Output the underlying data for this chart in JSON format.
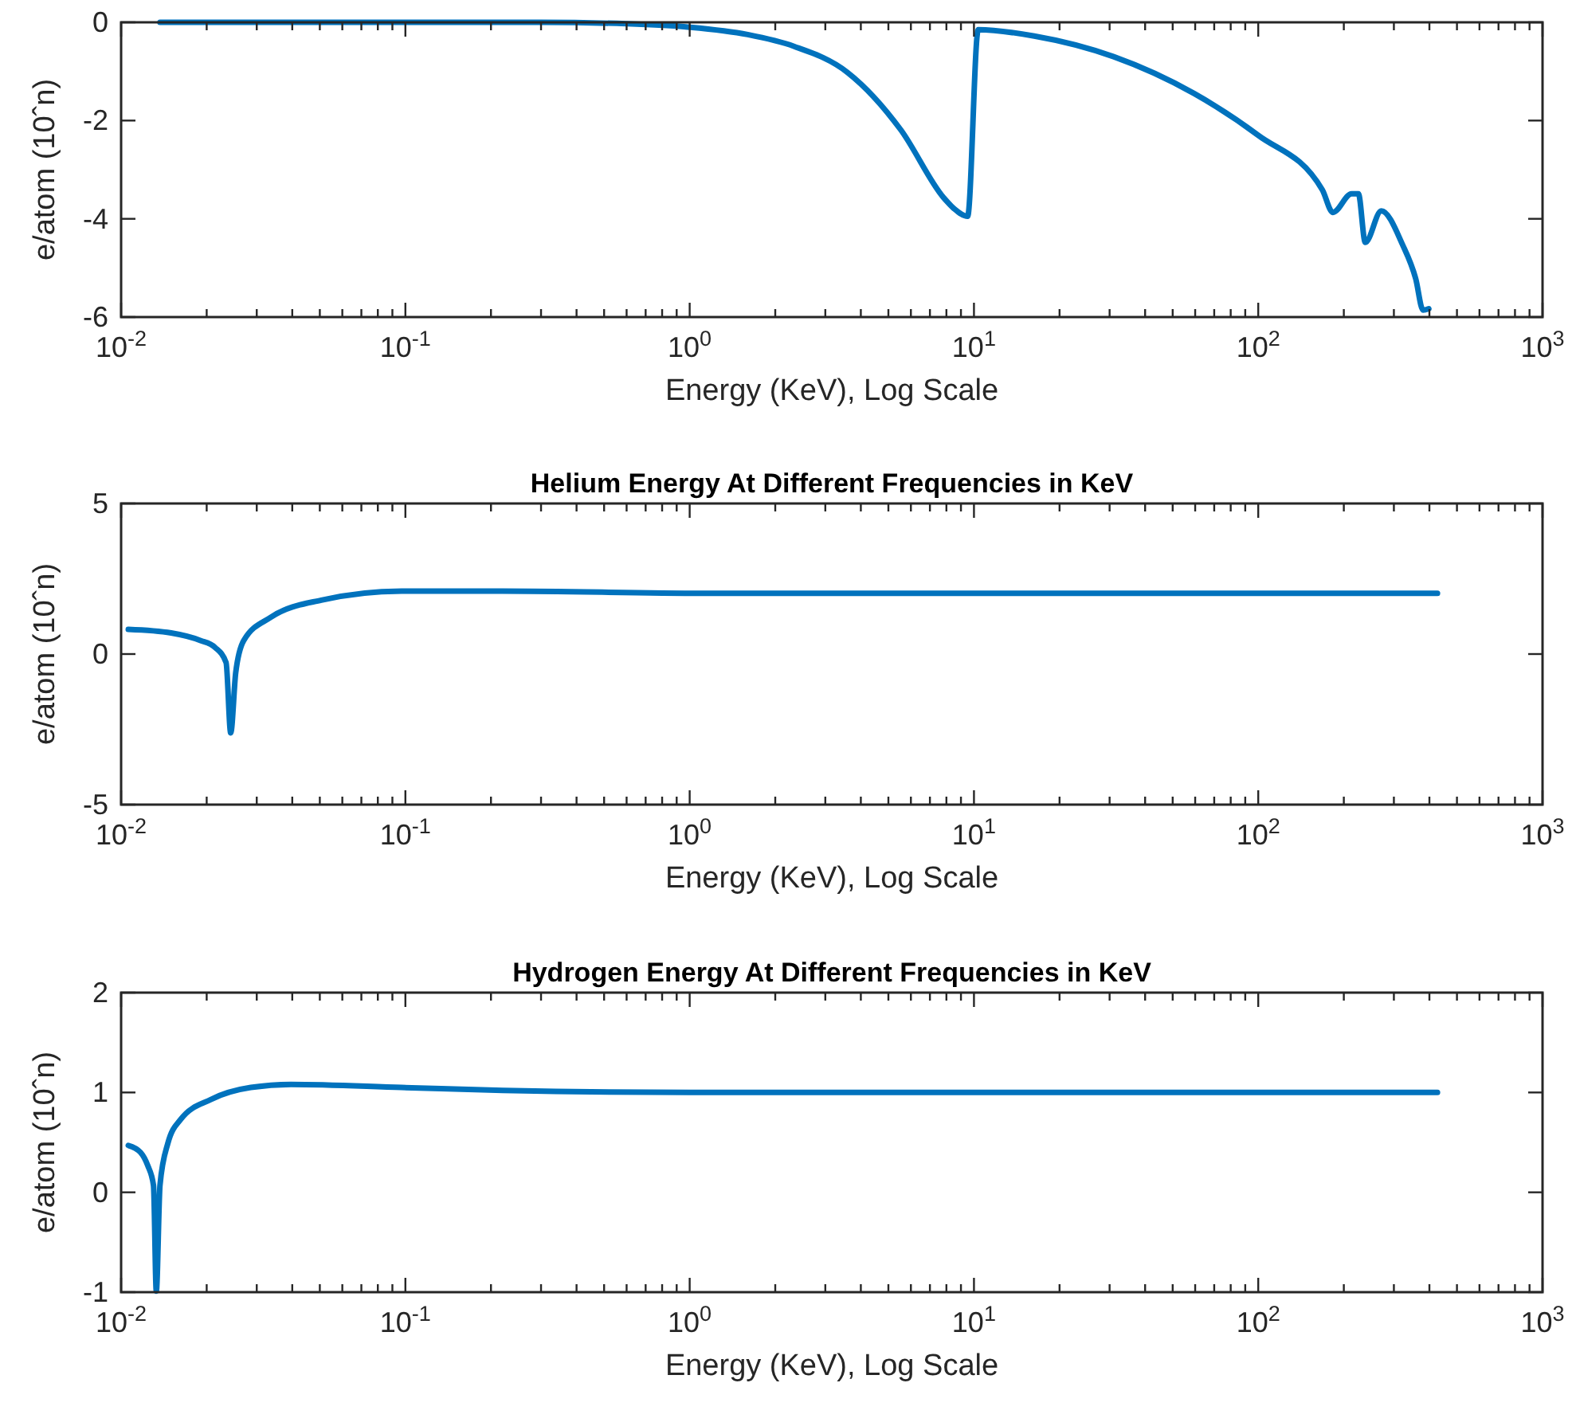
{
  "chart_data": [
    {
      "type": "line",
      "xlabel": "Energy (KeV), Log Scale",
      "ylabel": "e/atom (10ˆn)",
      "log": "x",
      "grid": false,
      "marker": "none",
      "line_style": "solid",
      "xlim": [
        0.01,
        1000
      ],
      "ylim": [
        -6,
        0
      ],
      "yticks": [
        -6,
        -4,
        -2,
        0
      ],
      "xticks": [
        {
          "value": 0.01,
          "label": "10$^{-2}$"
        },
        {
          "value": 0.02,
          "label": null
        },
        {
          "value": 0.03,
          "label": null
        },
        {
          "value": 0.04,
          "label": null
        },
        {
          "value": 0.05,
          "label": null
        },
        {
          "value": 0.06,
          "label": null
        },
        {
          "value": 0.07,
          "label": null
        },
        {
          "value": 0.08,
          "label": null
        },
        {
          "value": 0.09,
          "label": null
        },
        {
          "value": 0.1,
          "label": "10$^{-1}$"
        },
        {
          "value": 0.2,
          "label": null
        },
        {
          "value": 0.3,
          "label": null
        },
        {
          "value": 0.4,
          "label": null
        },
        {
          "value": 0.5,
          "label": null
        },
        {
          "value": 0.6,
          "label": null
        },
        {
          "value": 0.7,
          "label": null
        },
        {
          "value": 0.8,
          "label": null
        },
        {
          "value": 0.9,
          "label": null
        },
        {
          "value": 1,
          "label": "10$^{0}$"
        },
        {
          "value": 2,
          "label": null
        },
        {
          "value": 3,
          "label": null
        },
        {
          "value": 4,
          "label": null
        },
        {
          "value": 5,
          "label": null
        },
        {
          "value": 6,
          "label": null
        },
        {
          "value": 7,
          "label": null
        },
        {
          "value": 8,
          "label": null
        },
        {
          "value": 9,
          "label": null
        },
        {
          "value": 10,
          "label": "10$^{1}$"
        },
        {
          "value": 20,
          "label": null
        },
        {
          "value": 30,
          "label": null
        },
        {
          "value": 40,
          "label": null
        },
        {
          "value": 50,
          "label": null
        },
        {
          "value": 60,
          "label": null
        },
        {
          "value": 70,
          "label": null
        },
        {
          "value": 80,
          "label": null
        },
        {
          "value": 90,
          "label": null
        },
        {
          "value": 100,
          "label": "10$^{2}$"
        },
        {
          "value": 200,
          "label": null
        },
        {
          "value": 300,
          "label": null
        },
        {
          "value": 400,
          "label": null
        },
        {
          "value": 500,
          "label": null
        },
        {
          "value": 600,
          "label": null
        },
        {
          "value": 700,
          "label": null
        },
        {
          "value": 800,
          "label": null
        },
        {
          "value": 900,
          "label": null
        },
        {
          "value": 1000,
          "label": "10$^{3}$"
        }
      ],
      "series": [
        {
          "color": "#0072bd",
          "x": [
            0.0137,
            0.1,
            0.3,
            0.6,
            1.0,
            1.6,
            2.33,
            3.59,
            5.53,
            7.82,
            8.5,
            9.5,
            10.35,
            16.3,
            31,
            59.5,
            100,
            168,
            183,
            213,
            225,
            238,
            271,
            322,
            358,
            380,
            398
          ],
          "values": [
            0,
            0,
            0,
            -0.03,
            -0.1,
            -0.25,
            -0.49,
            -1.02,
            -2.19,
            -3.57,
            -3.79,
            -3.95,
            -0.15,
            -0.28,
            -0.7,
            -1.45,
            -2.3,
            -3.41,
            -3.87,
            -3.49,
            -3.49,
            -4.48,
            -3.84,
            -4.53,
            -5.22,
            -5.86,
            -5.83
          ]
        }
      ]
    },
    {
      "type": "line",
      "title": "Helium Energy At Different Frequencies in KeV",
      "xlabel": "Energy (KeV), Log Scale",
      "ylabel": "e/atom (10ˆn)",
      "log": "x",
      "grid": false,
      "marker": "none",
      "line_style": "solid",
      "xlim": [
        0.01,
        1000
      ],
      "ylim": [
        -5,
        5
      ],
      "yticks": [
        -5,
        0,
        5
      ],
      "xticks": [
        {
          "value": 0.01,
          "label": "10$^{-2}$"
        },
        {
          "value": 0.02,
          "label": null
        },
        {
          "value": 0.03,
          "label": null
        },
        {
          "value": 0.04,
          "label": null
        },
        {
          "value": 0.05,
          "label": null
        },
        {
          "value": 0.06,
          "label": null
        },
        {
          "value": 0.07,
          "label": null
        },
        {
          "value": 0.08,
          "label": null
        },
        {
          "value": 0.09,
          "label": null
        },
        {
          "value": 0.1,
          "label": "10$^{-1}$"
        },
        {
          "value": 0.2,
          "label": null
        },
        {
          "value": 0.3,
          "label": null
        },
        {
          "value": 0.4,
          "label": null
        },
        {
          "value": 0.5,
          "label": null
        },
        {
          "value": 0.6,
          "label": null
        },
        {
          "value": 0.7,
          "label": null
        },
        {
          "value": 0.8,
          "label": null
        },
        {
          "value": 0.9,
          "label": null
        },
        {
          "value": 1,
          "label": "10$^{0}$"
        },
        {
          "value": 2,
          "label": null
        },
        {
          "value": 3,
          "label": null
        },
        {
          "value": 4,
          "label": null
        },
        {
          "value": 5,
          "label": null
        },
        {
          "value": 6,
          "label": null
        },
        {
          "value": 7,
          "label": null
        },
        {
          "value": 8,
          "label": null
        },
        {
          "value": 9,
          "label": null
        },
        {
          "value": 10,
          "label": "10$^{1}$"
        },
        {
          "value": 20,
          "label": null
        },
        {
          "value": 30,
          "label": null
        },
        {
          "value": 40,
          "label": null
        },
        {
          "value": 50,
          "label": null
        },
        {
          "value": 60,
          "label": null
        },
        {
          "value": 70,
          "label": null
        },
        {
          "value": 80,
          "label": null
        },
        {
          "value": 90,
          "label": null
        },
        {
          "value": 100,
          "label": "10$^{2}$"
        },
        {
          "value": 200,
          "label": null
        },
        {
          "value": 300,
          "label": null
        },
        {
          "value": 400,
          "label": null
        },
        {
          "value": 500,
          "label": null
        },
        {
          "value": 600,
          "label": null
        },
        {
          "value": 700,
          "label": null
        },
        {
          "value": 800,
          "label": null
        },
        {
          "value": 900,
          "label": null
        },
        {
          "value": 1000,
          "label": "10$^{3}$"
        }
      ],
      "series": [
        {
          "color": "#0072bd",
          "x": [
            0.0106,
            0.015,
            0.019,
            0.0214,
            0.0234,
            0.0243,
            0.0253,
            0.027,
            0.0336,
            0.0506,
            0.097,
            0.219,
            1.11,
            10,
            100,
            427
          ],
          "values": [
            0.82,
            0.7,
            0.45,
            0.22,
            -0.28,
            -2.62,
            -0.62,
            0.45,
            1.22,
            1.79,
            2.09,
            2.09,
            2.02,
            2.02,
            2.02,
            2.02
          ]
        }
      ]
    },
    {
      "type": "line",
      "title": "Hydrogen Energy At Different Frequencies in KeV",
      "xlabel": "Energy (KeV), Log Scale",
      "ylabel": "e/atom (10ˆn)",
      "log": "x",
      "grid": false,
      "marker": "none",
      "line_style": "solid",
      "xlim": [
        0.01,
        1000
      ],
      "ylim": [
        -1,
        2
      ],
      "yticks": [
        -1,
        0,
        1,
        2
      ],
      "xticks": [
        {
          "value": 0.01,
          "label": "10$^{-2}$"
        },
        {
          "value": 0.02,
          "label": null
        },
        {
          "value": 0.03,
          "label": null
        },
        {
          "value": 0.04,
          "label": null
        },
        {
          "value": 0.05,
          "label": null
        },
        {
          "value": 0.06,
          "label": null
        },
        {
          "value": 0.07,
          "label": null
        },
        {
          "value": 0.08,
          "label": null
        },
        {
          "value": 0.09,
          "label": null
        },
        {
          "value": 0.1,
          "label": "10$^{-1}$"
        },
        {
          "value": 0.2,
          "label": null
        },
        {
          "value": 0.3,
          "label": null
        },
        {
          "value": 0.4,
          "label": null
        },
        {
          "value": 0.5,
          "label": null
        },
        {
          "value": 0.6,
          "label": null
        },
        {
          "value": 0.7,
          "label": null
        },
        {
          "value": 0.8,
          "label": null
        },
        {
          "value": 0.9,
          "label": null
        },
        {
          "value": 1,
          "label": "10$^{0}$"
        },
        {
          "value": 2,
          "label": null
        },
        {
          "value": 3,
          "label": null
        },
        {
          "value": 4,
          "label": null
        },
        {
          "value": 5,
          "label": null
        },
        {
          "value": 6,
          "label": null
        },
        {
          "value": 7,
          "label": null
        },
        {
          "value": 8,
          "label": null
        },
        {
          "value": 9,
          "label": null
        },
        {
          "value": 10,
          "label": "10$^{1}$"
        },
        {
          "value": 20,
          "label": null
        },
        {
          "value": 30,
          "label": null
        },
        {
          "value": 40,
          "label": null
        },
        {
          "value": 50,
          "label": null
        },
        {
          "value": 60,
          "label": null
        },
        {
          "value": 70,
          "label": null
        },
        {
          "value": 80,
          "label": null
        },
        {
          "value": 90,
          "label": null
        },
        {
          "value": 100,
          "label": "10$^{2}$"
        },
        {
          "value": 200,
          "label": null
        },
        {
          "value": 300,
          "label": null
        },
        {
          "value": 400,
          "label": null
        },
        {
          "value": 500,
          "label": null
        },
        {
          "value": 600,
          "label": null
        },
        {
          "value": 700,
          "label": null
        },
        {
          "value": 800,
          "label": null
        },
        {
          "value": 900,
          "label": null
        },
        {
          "value": 1000,
          "label": "10$^{3}$"
        }
      ],
      "series": [
        {
          "color": "#0072bd",
          "x": [
            0.0106,
            0.0117,
            0.0124,
            0.013,
            0.0133,
            0.0137,
            0.0146,
            0.0162,
            0.0207,
            0.0286,
            0.0396,
            0.097,
            0.22,
            1,
            10,
            100,
            427
          ],
          "values": [
            0.47,
            0.4,
            0.27,
            0.07,
            -0.99,
            0.07,
            0.49,
            0.73,
            0.93,
            1.05,
            1.08,
            1.05,
            1.02,
            1.0,
            1.0,
            1.0,
            1.0
          ]
        }
      ]
    }
  ]
}
